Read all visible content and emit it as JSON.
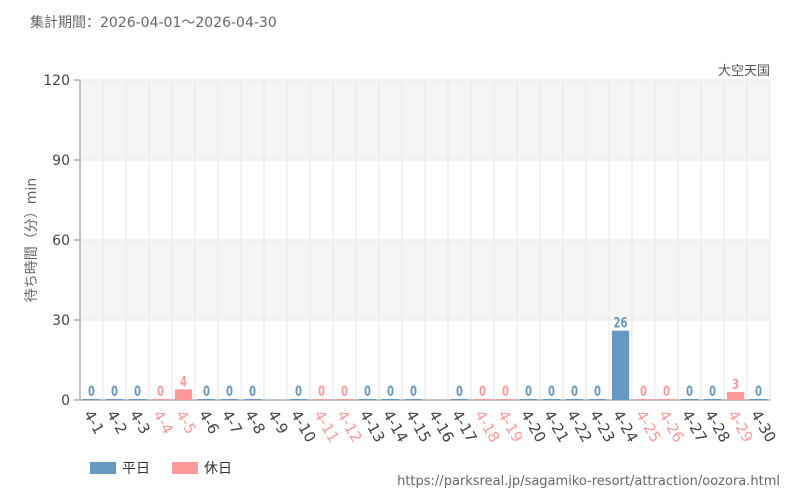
{
  "header": {
    "period": "集計期間：2026-04-01～2026-04-30",
    "facility": "大空天国"
  },
  "source_url": "https://parksreal.jp/sagamiko-resort/attraction/oozora.html",
  "colors": {
    "weekday": "#6699c2",
    "holiday": "#ff9999",
    "grid": "#e6e6e6",
    "band": "#f5f5f5"
  },
  "chart_data": {
    "type": "bar",
    "ylabel": "待ち時間（分）min",
    "ylim": [
      0,
      120
    ],
    "yticks": [
      0,
      30,
      60,
      90,
      120
    ],
    "grid": true,
    "legend_position": "bottom-left",
    "series": [
      {
        "name": "平日",
        "key": "weekday"
      },
      {
        "name": "休日",
        "key": "holiday"
      }
    ],
    "categories": [
      "4-1",
      "4-2",
      "4-3",
      "4-4",
      "4-5",
      "4-6",
      "4-7",
      "4-8",
      "4-9",
      "4-10",
      "4-11",
      "4-12",
      "4-13",
      "4-14",
      "4-15",
      "4-16",
      "4-17",
      "4-18",
      "4-19",
      "4-20",
      "4-21",
      "4-22",
      "4-23",
      "4-24",
      "4-25",
      "4-26",
      "4-27",
      "4-28",
      "4-29",
      "4-30"
    ],
    "day_type": [
      "weekday",
      "weekday",
      "weekday",
      "holiday",
      "holiday",
      "weekday",
      "weekday",
      "weekday",
      "weekday",
      "weekday",
      "holiday",
      "holiday",
      "weekday",
      "weekday",
      "weekday",
      "weekday",
      "weekday",
      "holiday",
      "holiday",
      "weekday",
      "weekday",
      "weekday",
      "weekday",
      "weekday",
      "holiday",
      "holiday",
      "weekday",
      "weekday",
      "holiday",
      "weekday"
    ],
    "values": [
      0,
      0,
      0,
      0,
      4,
      0,
      0,
      0,
      null,
      0,
      0,
      0,
      0,
      0,
      0,
      null,
      0,
      0,
      0,
      0,
      0,
      0,
      0,
      26,
      0,
      0,
      0,
      0,
      3,
      0
    ]
  }
}
